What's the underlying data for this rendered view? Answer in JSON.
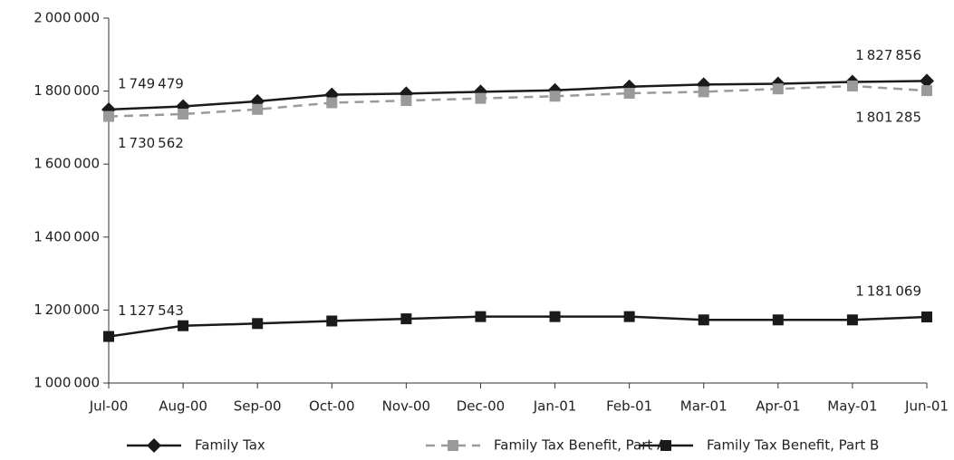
{
  "chart_data": {
    "type": "line",
    "categories": [
      "Jul-00",
      "Aug-00",
      "Sep-00",
      "Oct-00",
      "Nov-00",
      "Dec-00",
      "Jan-01",
      "Feb-01",
      "Mar-01",
      "Apr-01",
      "May-01",
      "Jun-01"
    ],
    "series": [
      {
        "name": "Family Tax",
        "color": "#1a1a1a",
        "marker": "diamond",
        "dashed": false,
        "values": [
          1749479,
          1758000,
          1772000,
          1790000,
          1793000,
          1798000,
          1802000,
          1812000,
          1818000,
          1820000,
          1825000,
          1827856
        ],
        "value_labels": [
          "1 749 479",
          null,
          null,
          null,
          null,
          null,
          null,
          null,
          null,
          null,
          null,
          "1 827 856"
        ]
      },
      {
        "name": "Family Tax Benefit, Part A",
        "color": "#9a9a9a",
        "marker": "square",
        "dashed": true,
        "values": [
          1730562,
          1737000,
          1750000,
          1768000,
          1774000,
          1780000,
          1786000,
          1794000,
          1798000,
          1806000,
          1814000,
          1801285
        ],
        "value_labels": [
          "1 730 562",
          null,
          null,
          null,
          null,
          null,
          null,
          null,
          null,
          null,
          null,
          "1 801 285"
        ]
      },
      {
        "name": "Family Tax Benefit, Part B",
        "color": "#1a1a1a",
        "marker": "square",
        "dashed": false,
        "values": [
          1127543,
          1157000,
          1163000,
          1170000,
          1176000,
          1182000,
          1182000,
          1182000,
          1173000,
          1173000,
          1173000,
          1181069
        ],
        "value_labels": [
          "1 127 543",
          null,
          null,
          null,
          null,
          null,
          null,
          null,
          null,
          null,
          null,
          "1 181 069"
        ]
      }
    ],
    "ylim": [
      1000000,
      2000000
    ],
    "yticks": [
      {
        "value": 1000000,
        "label": "1 000 000"
      },
      {
        "value": 1200000,
        "label": "1 200 000"
      },
      {
        "value": 1400000,
        "label": "1 400 000"
      },
      {
        "value": 1600000,
        "label": "1 600 000"
      },
      {
        "value": 1800000,
        "label": "1 800 000"
      },
      {
        "value": 2000000,
        "label": "2 000 000"
      }
    ],
    "grid": false,
    "legend": "bottom"
  }
}
